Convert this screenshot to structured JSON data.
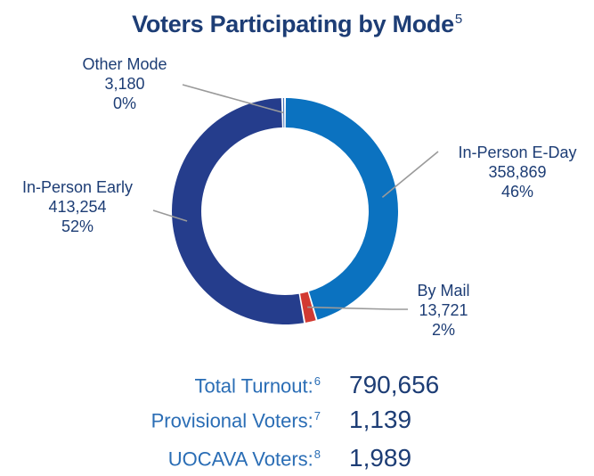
{
  "chart_data": {
    "type": "pie",
    "title": "Voters Participating by Mode",
    "title_footnote": "5",
    "slices": [
      {
        "name": "In-Person E-Day",
        "value": 358869,
        "value_label": "358,869",
        "percent_label": "46%",
        "color": "#0b72c0"
      },
      {
        "name": "By Mail",
        "value": 13721,
        "value_label": "13,721",
        "percent_label": "2%",
        "color": "#d23a32"
      },
      {
        "name": "In-Person Early",
        "value": 413254,
        "value_label": "413,254",
        "percent_label": "52%",
        "color": "#253d8c"
      },
      {
        "name": "Other Mode",
        "value": 3180,
        "value_label": "3,180",
        "percent_label": "0%",
        "color": "#4a73b8"
      }
    ]
  },
  "stats": [
    {
      "label": "Total Turnout:",
      "footnote": "6",
      "value": "790,656"
    },
    {
      "label": "Provisional Voters:",
      "footnote": "7",
      "value": "1,139"
    },
    {
      "label": "UOCAVA Voters:",
      "footnote": "8",
      "value": "1,989"
    }
  ]
}
